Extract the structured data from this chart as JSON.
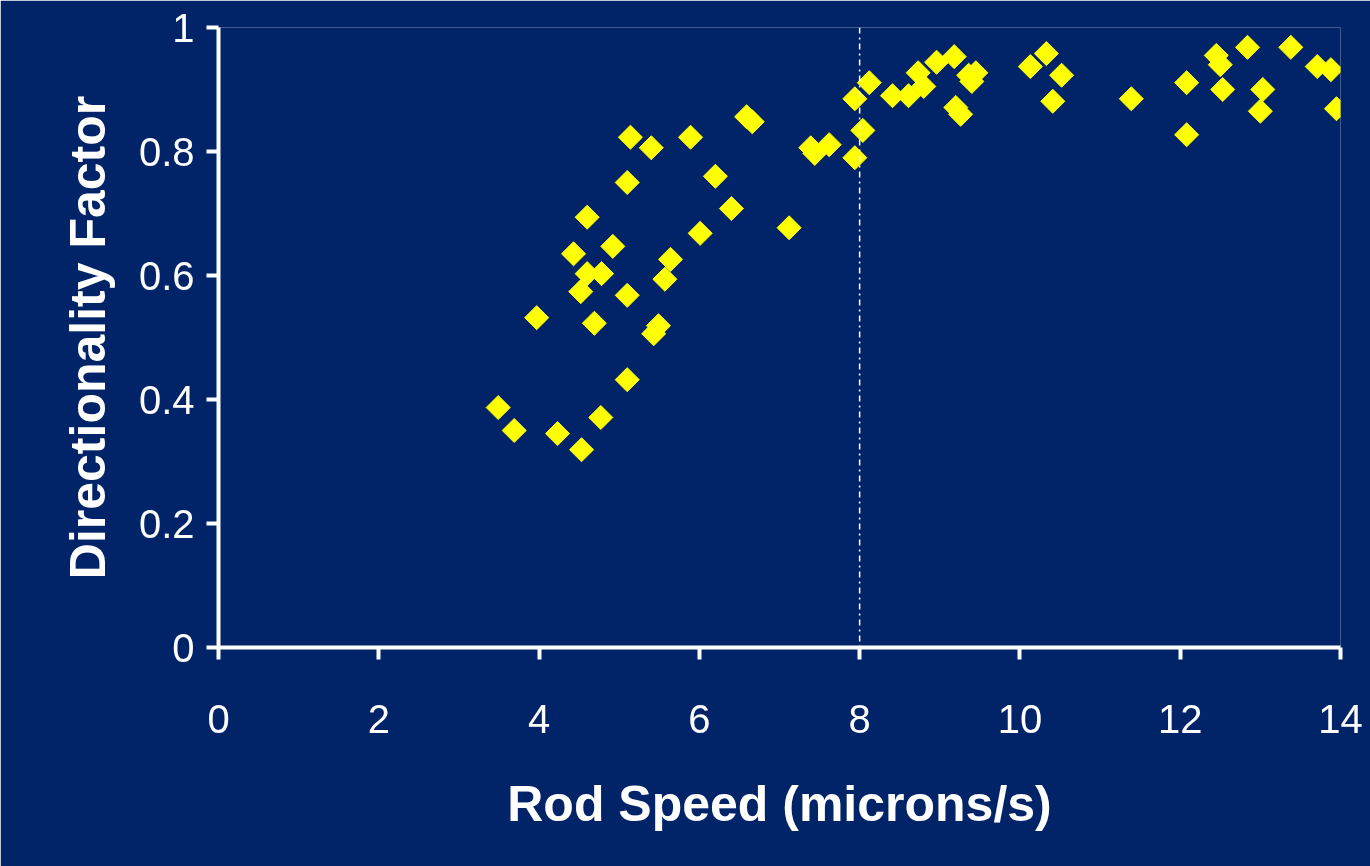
{
  "chart_data": {
    "type": "scatter",
    "xlabel": "Rod Speed (microns/s)",
    "ylabel": "Directionality Factor",
    "xlim": [
      0,
      14
    ],
    "ylim": [
      0,
      1
    ],
    "xticks": [
      0,
      2,
      4,
      6,
      8,
      10,
      12,
      14
    ],
    "yticks": [
      0,
      0.2,
      0.4,
      0.6,
      0.8,
      1
    ],
    "grid": false,
    "marker": "diamond",
    "ref_lines": [
      {
        "axis": "x",
        "value": 8,
        "color": "#ffffff",
        "line_style": "dashdot"
      }
    ],
    "series": [
      {
        "color": "#ffff00",
        "x": [
          3.49,
          3.69,
          3.97,
          4.23,
          4.53,
          4.77,
          5.1,
          4.43,
          4.6,
          4.52,
          4.6,
          4.78,
          4.69,
          4.92,
          5.1,
          5.1,
          5.14,
          5.4,
          5.43,
          5.49,
          5.57,
          5.64,
          5.89,
          6.01,
          6.2,
          6.4,
          6.59,
          6.66,
          7.12,
          7.39,
          7.44,
          7.62,
          7.94,
          7.94,
          8.04,
          8.12,
          8.41,
          8.61,
          8.73,
          8.8,
          8.96,
          9.18,
          9.2,
          9.26,
          9.36,
          9.45,
          9.4,
          10.13,
          10.33,
          10.52,
          10.41,
          11.39,
          12.08,
          12.08,
          12.45,
          12.5,
          12.53,
          12.84,
          13.03,
          13.0,
          13.38,
          13.71,
          13.88,
          13.95
        ],
        "values": [
          0.387,
          0.35,
          0.532,
          0.345,
          0.319,
          0.371,
          0.432,
          0.635,
          0.694,
          0.574,
          0.603,
          0.603,
          0.523,
          0.647,
          0.568,
          0.75,
          0.823,
          0.806,
          0.506,
          0.519,
          0.594,
          0.626,
          0.823,
          0.668,
          0.76,
          0.708,
          0.856,
          0.848,
          0.677,
          0.806,
          0.797,
          0.811,
          0.79,
          0.885,
          0.834,
          0.911,
          0.89,
          0.89,
          0.927,
          0.905,
          0.944,
          0.953,
          0.871,
          0.86,
          0.923,
          0.927,
          0.913,
          0.937,
          0.958,
          0.923,
          0.881,
          0.885,
          0.911,
          0.827,
          0.955,
          0.94,
          0.9,
          0.968,
          0.9,
          0.865,
          0.968,
          0.937,
          0.932,
          0.869
        ]
      }
    ]
  }
}
